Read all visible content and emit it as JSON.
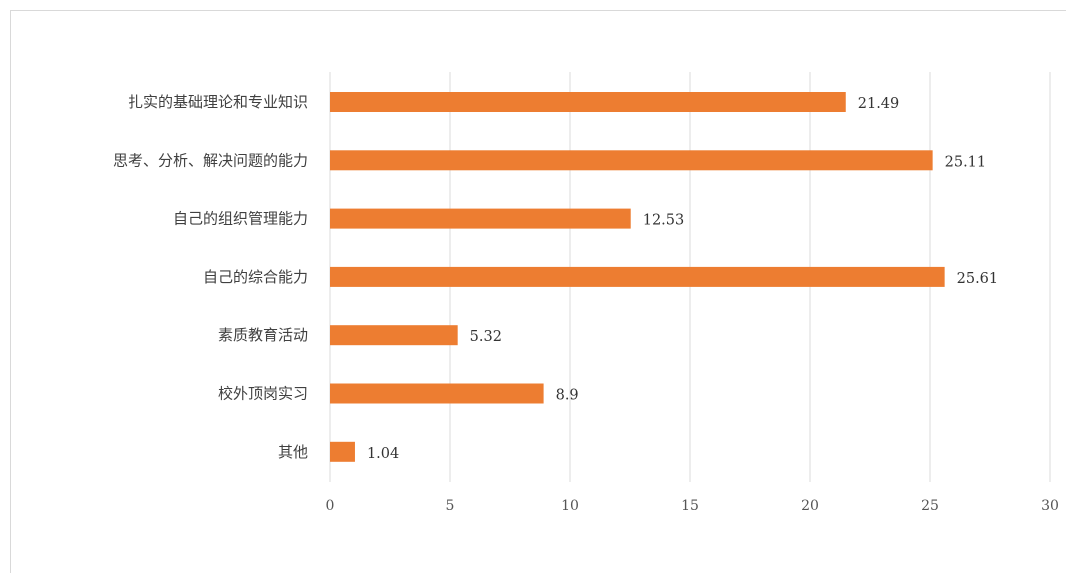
{
  "chart_data": {
    "type": "bar",
    "orientation": "horizontal",
    "title": "",
    "xlabel": "",
    "ylabel": "",
    "categories": [
      "扎实的基础理论和专业知识",
      "思考、分析、解决问题的能力",
      "自己的组织管理能力",
      "自己的综合能力",
      "素质教育活动",
      "校外顶岗实习",
      "其他"
    ],
    "values": [
      21.49,
      25.11,
      12.53,
      25.61,
      5.32,
      8.9,
      1.04
    ],
    "data_labels": [
      "21.49",
      "25.11",
      "12.53",
      "25.61",
      "5.32",
      "8.9",
      "1.04"
    ],
    "xlim": [
      0,
      30
    ],
    "x_ticks": [
      0,
      5,
      10,
      15,
      20,
      25,
      30
    ],
    "grid": "vertical",
    "legend": "none",
    "bar_color": "#ed7d31"
  }
}
